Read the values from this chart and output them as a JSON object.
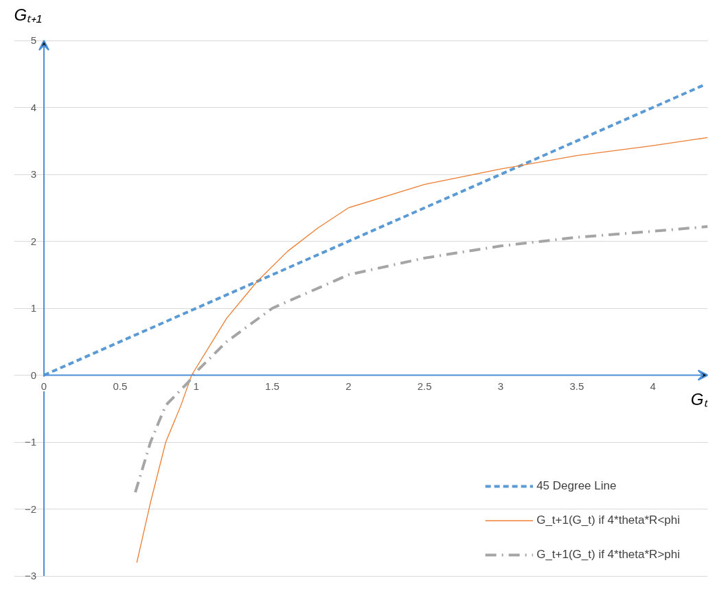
{
  "chart_data": {
    "type": "line",
    "xlabel": "Gₜ",
    "ylabel": "Gₜ₊₁",
    "xlim": [
      0,
      4.36
    ],
    "ylim": [
      -3,
      5
    ],
    "xticks": [
      0,
      0.5,
      1,
      1.5,
      2,
      2.5,
      3,
      3.5,
      4
    ],
    "yticks": [
      -3,
      -2,
      -1,
      0,
      1,
      2,
      3,
      4,
      5
    ],
    "grid": "y",
    "legend": "bottom right",
    "series": [
      {
        "name": "45 Degree Line",
        "color": "#5b9bd5",
        "line_style": "dashed",
        "x": [
          0,
          4.33
        ],
        "values": [
          0,
          4.33
        ]
      },
      {
        "name": "G_t+1(G_t) if 4*theta*R<phi",
        "color": "#ed7d31",
        "line_style": "solid",
        "x": [
          0.61,
          0.7,
          0.8,
          0.9,
          0.97,
          1.2,
          1.4,
          1.6,
          1.8,
          2,
          2.5,
          3,
          3.5,
          4,
          4.36
        ],
        "values": [
          -2.8,
          -1.9,
          -1.0,
          -0.45,
          0,
          0.85,
          1.4,
          1.85,
          2.2,
          2.5,
          2.85,
          3.08,
          3.28,
          3.43,
          3.55
        ]
      },
      {
        "name": "G_t+1(G_t) if 4*theta*R>phi",
        "color": "#a5a5a5",
        "line_style": "dashdot",
        "x": [
          0.6,
          0.7,
          0.8,
          0.95,
          1,
          1.2,
          1.5,
          2,
          2.5,
          3,
          3.5,
          4,
          4.36
        ],
        "values": [
          -1.75,
          -1.0,
          -0.45,
          -0.1,
          0.05,
          0.5,
          1.0,
          1.5,
          1.75,
          1.93,
          2.06,
          2.15,
          2.22
        ]
      }
    ]
  }
}
